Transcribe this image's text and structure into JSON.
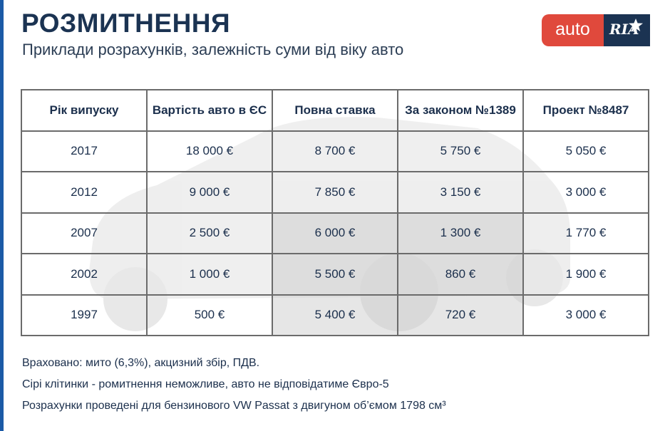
{
  "header": {
    "title": "РОЗМИТНЕННЯ",
    "subtitle": "Приклади розрахунків, залежність суми від віку авто"
  },
  "logo": {
    "left_text": "auto",
    "right_text": "RIA"
  },
  "colors": {
    "accent_bar": "#1b5aa6",
    "title": "#1b3352",
    "logo_red": "#e0493c",
    "logo_navy": "#1b3352",
    "grey_text": "#b4b4b4"
  },
  "chart_data": {
    "type": "table",
    "columns": [
      "Рік випуску",
      "Вартість авто в ЄС",
      "Повна ставка",
      "За законом №1389",
      "Проект №8487"
    ],
    "rows": [
      {
        "year": "2017",
        "cells": [
          "18 000 €",
          "8 700 €",
          "5 750 €",
          "5 050 €"
        ],
        "gray": [
          false,
          false,
          false,
          false
        ]
      },
      {
        "year": "2012",
        "cells": [
          "9 000 €",
          "7 850 €",
          "3 150 €",
          "3 000 €"
        ],
        "gray": [
          false,
          false,
          false,
          false
        ]
      },
      {
        "year": "2007",
        "cells": [
          "2 500 €",
          "6 000 €",
          "1 300 €",
          "1 770 €"
        ],
        "gray": [
          false,
          true,
          true,
          false
        ]
      },
      {
        "year": "2002",
        "cells": [
          "1 000 €",
          "5 500 €",
          "860 €",
          "1 900 €"
        ],
        "gray": [
          false,
          true,
          true,
          false
        ]
      },
      {
        "year": "1997",
        "cells": [
          "500 €",
          "5 400 €",
          "720 €",
          "3 000 €"
        ],
        "gray": [
          false,
          true,
          true,
          false
        ]
      }
    ]
  },
  "notes": [
    "Враховано: мито (6,3%), акцизний збір, ПДВ.",
    "Сірі клітинки - ромитнення неможливе, авто не відповідатиме Євро-5",
    "Розрахунки проведені для бензинового VW Passat з двигуном об’ємом 1798 см³"
  ]
}
